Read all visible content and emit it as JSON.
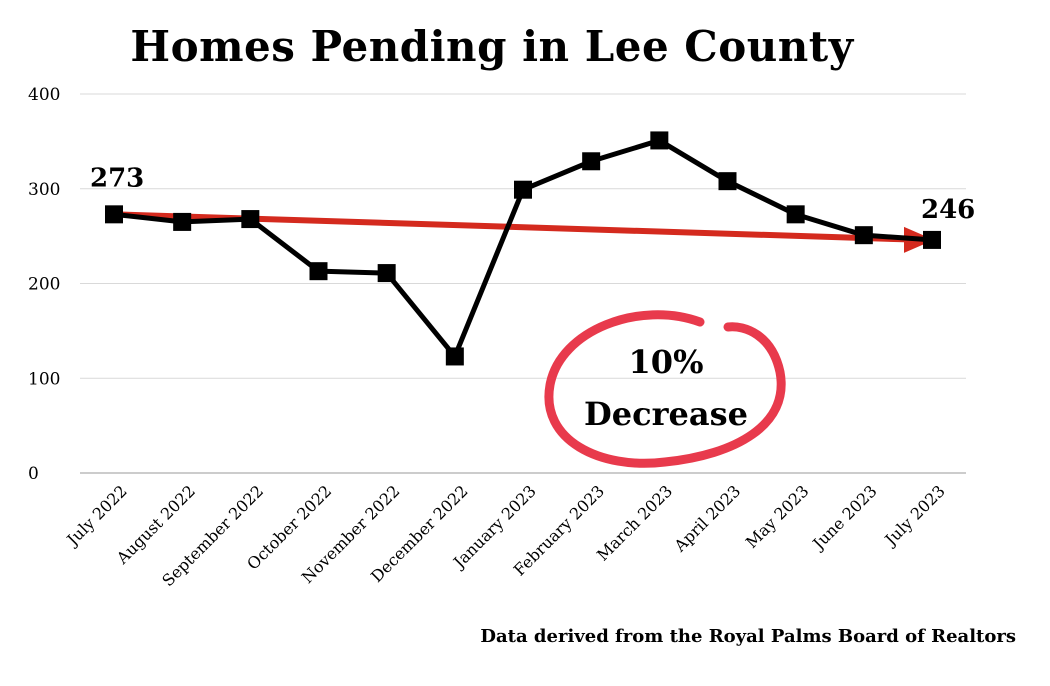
{
  "chart_data": {
    "type": "line",
    "title": "Homes Pending in Lee County",
    "categories": [
      "July 2022",
      "August 2022",
      "September 2022",
      "October 2022",
      "November 2022",
      "December 2022",
      "January 2023",
      "February 2023",
      "March 2023",
      "April 2023",
      "May 2023",
      "June 2023",
      "July 2023"
    ],
    "series": [
      {
        "values": [
          273,
          265,
          268,
          213,
          211,
          123,
          299,
          329,
          351,
          308,
          273,
          251,
          246
        ],
        "color": "#000000"
      }
    ],
    "trend_line": {
      "from": 273,
      "to": 246,
      "color": "#d42a1e"
    },
    "ylim": [
      0,
      400
    ],
    "yticks": [
      0,
      100,
      200,
      300,
      400
    ],
    "grid": true,
    "xlabel": "",
    "ylabel": "",
    "annotations": {
      "start_label": "273",
      "end_label": "246",
      "callout_line1": "10%",
      "callout_line2": "Decrease",
      "callout_color": "#e83a4c"
    },
    "source": "Data derived from the Royal Palms Board of Realtors"
  }
}
